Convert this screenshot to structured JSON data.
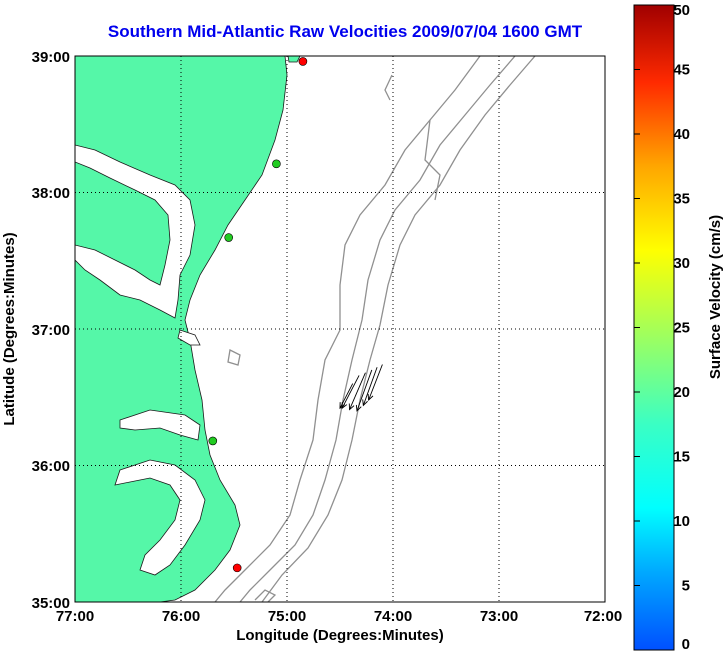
{
  "title": "Southern Mid-Atlantic Raw Velocities 2009/07/04 1600 GMT",
  "map": {
    "x_axis_label": "Longitude (Degrees:Minutes)",
    "y_axis_label": "Latitude (Degrees:Minutes)",
    "x_ticks": [
      "77:00",
      "76:00",
      "75:00",
      "74:00",
      "73:00",
      "72:00"
    ],
    "y_ticks": [
      "39:00",
      "38:00",
      "37:00",
      "36:00",
      "35:00"
    ],
    "lon_range": [
      -77,
      -72
    ],
    "lat_range": [
      35,
      39
    ],
    "grid": "dotted",
    "land_color": "#55f7a8",
    "bathymetry_color": "#909090",
    "stations": [
      {
        "lon": -74.85,
        "lat": 38.96,
        "color": "#ff0000"
      },
      {
        "lon": -75.1,
        "lat": 38.21,
        "color": "#22cc22"
      },
      {
        "lon": -75.55,
        "lat": 37.67,
        "color": "#22cc22"
      },
      {
        "lon": -75.7,
        "lat": 36.18,
        "color": "#22cc22"
      },
      {
        "lon": -75.47,
        "lat": 35.25,
        "color": "#ff0000"
      }
    ],
    "vectors": [
      {
        "lon": -74.2,
        "lat": 36.7,
        "dlon": -0.14,
        "dlat": -0.3
      },
      {
        "lon": -74.15,
        "lat": 36.72,
        "dlon": -0.13,
        "dlat": -0.28
      },
      {
        "lon": -74.26,
        "lat": 36.68,
        "dlon": -0.15,
        "dlat": -0.27
      },
      {
        "lon": -74.1,
        "lat": 36.74,
        "dlon": -0.13,
        "dlat": -0.26
      },
      {
        "lon": -74.32,
        "lat": 36.66,
        "dlon": -0.16,
        "dlat": -0.24
      },
      {
        "lon": -74.38,
        "lat": 36.6,
        "dlon": -0.12,
        "dlat": -0.18
      }
    ]
  },
  "colorbar": {
    "label": "Surface Velocity (cm/s)",
    "ticks": [
      "0",
      "5",
      "10",
      "15",
      "20",
      "25",
      "30",
      "35",
      "40",
      "45",
      "50"
    ],
    "range": [
      0,
      50
    ],
    "colormap": "jet"
  }
}
